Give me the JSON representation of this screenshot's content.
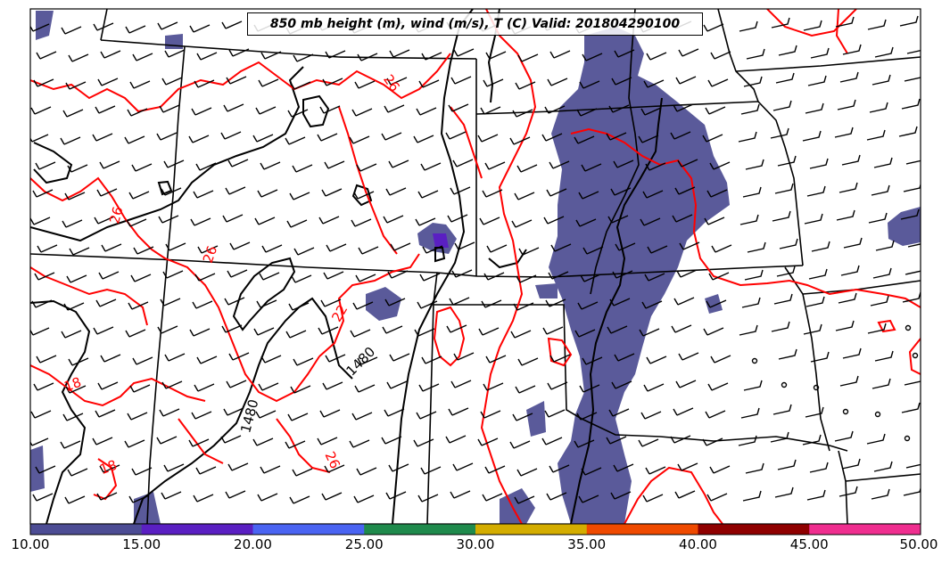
{
  "title": "850 mb height (m), wind (m/s), T (C) Valid: 201804290100",
  "contour_labels": {
    "temperature": [
      "26",
      "26",
      "26",
      "22",
      "26",
      "18",
      "18"
    ],
    "height": [
      "1480",
      "1480"
    ]
  },
  "colorbar": {
    "ticks": [
      "10.00",
      "15.00",
      "20.00",
      "25.00",
      "30.00",
      "35.00",
      "40.00",
      "45.00",
      "50.00"
    ],
    "colors": [
      "#4c4c94",
      "#5a1fc2",
      "#4a64f2",
      "#1f8a4c",
      "#d4ad00",
      "#ef4a00",
      "#8f0000",
      "#ef2e8f"
    ]
  },
  "colors": {
    "temperature_contour": "#ff0000",
    "height_contour": "#000000",
    "wind_shading": "#5a5a9a",
    "state_boundaries": "#000000"
  }
}
